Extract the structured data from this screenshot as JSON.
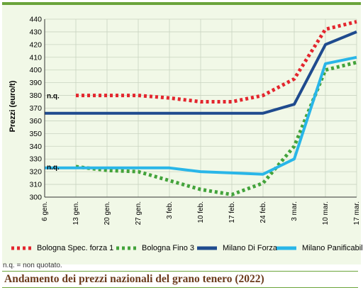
{
  "chart_data": {
    "type": "line",
    "title": "Andamento dei prezzi nazionali del grano tenero (2022)",
    "xlabel": "",
    "ylabel": "Prezzi (euro/t)",
    "ylim": [
      300,
      440
    ],
    "yticks": [
      300,
      310,
      320,
      330,
      340,
      350,
      360,
      370,
      380,
      390,
      400,
      410,
      420,
      430,
      440
    ],
    "categories": [
      "6 gen.",
      "13 gen.",
      "20 gen.",
      "27 gen.",
      "3 feb.",
      "10 feb.",
      "17 feb.",
      "24 feb.",
      "3 mar.",
      "10 mar.",
      "17 mar."
    ],
    "grid": true,
    "legend": "bottom",
    "series": [
      {
        "name": "Bologna Spec. forza 1",
        "color": "#e3262e",
        "style": "dotted",
        "values": [
          null,
          380,
          380,
          380,
          378,
          375,
          375,
          380,
          393,
          432,
          438
        ]
      },
      {
        "name": "Bologna Fino 3",
        "color": "#43a33b",
        "style": "dotted",
        "values": [
          null,
          324,
          321,
          320,
          313,
          306,
          302,
          311,
          340,
          400,
          406
        ]
      },
      {
        "name": "Milano Di Forza",
        "color": "#1f4b8e",
        "style": "solid",
        "values": [
          366,
          366,
          366,
          366,
          366,
          366,
          366,
          366,
          373,
          420,
          430
        ]
      },
      {
        "name": "Milano Panificabile",
        "color": "#29b6e8",
        "style": "solid",
        "values": [
          323,
          323,
          323,
          323,
          323,
          320,
          319,
          318,
          330,
          405,
          410
        ]
      }
    ],
    "annotations": [
      {
        "text": "n.q.",
        "series": 0
      },
      {
        "text": "n.q.",
        "series": 1
      }
    ]
  },
  "footnote": "n.q. = non quotato."
}
